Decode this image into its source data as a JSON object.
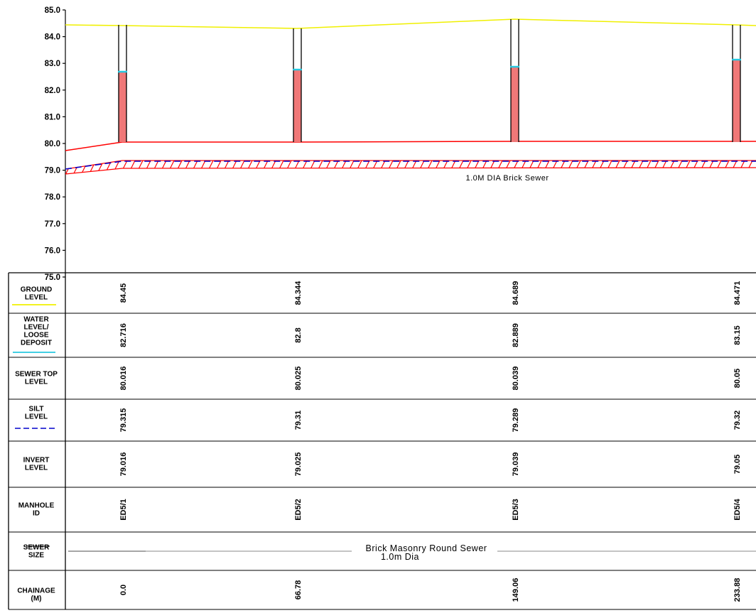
{
  "colors": {
    "ground": "#f0f000",
    "water": "#28c8e0",
    "sewer": "#ff0000",
    "silt": "#0000cc",
    "manhole_fill": "#f07878",
    "grid": "#000000"
  },
  "axis": {
    "ticks": [
      "85.0",
      "84.0",
      "83.0",
      "82.0",
      "81.0",
      "80.0",
      "79.0",
      "78.0",
      "77.0",
      "76.0",
      "75.0"
    ]
  },
  "sewer_label": "1.0M DIA Brick Sewer",
  "table": {
    "rows": [
      {
        "label": [
          "GROUND",
          "LEVEL"
        ],
        "values": [
          "84.45",
          "84.344",
          "84.689",
          "84.471"
        ]
      },
      {
        "label": [
          "WATER",
          "LEVEL/",
          "LOOSE",
          "DEPOSIT"
        ],
        "values": [
          "82.716",
          "82.8",
          "82.889",
          "83.15"
        ]
      },
      {
        "label": [
          "SEWER TOP",
          "LEVEL"
        ],
        "values": [
          "80.016",
          "80.025",
          "80.039",
          "80.05"
        ]
      },
      {
        "label": [
          "SILT",
          "LEVEL"
        ],
        "values": [
          "79.315",
          "79.31",
          "79.289",
          "79.32"
        ]
      },
      {
        "label": [
          "INVERT",
          "LEVEL"
        ],
        "values": [
          "79.016",
          "79.025",
          "79.039",
          "79.05"
        ]
      },
      {
        "label": [
          "MANHOLE",
          "ID"
        ],
        "values": [
          "ED5/1",
          "ED5/2",
          "ED5/3",
          "ED5/4"
        ]
      },
      {
        "label": [
          "SEWER",
          "SIZE"
        ],
        "values": []
      },
      {
        "label": [
          "CHAINAGE",
          "(M)"
        ],
        "values": [
          "0.0",
          "66.78",
          "149.06",
          "233.88"
        ]
      }
    ],
    "sewer_size_text": [
      "Brick Masonry Round Sewer",
      "1.0m Dia"
    ]
  }
}
